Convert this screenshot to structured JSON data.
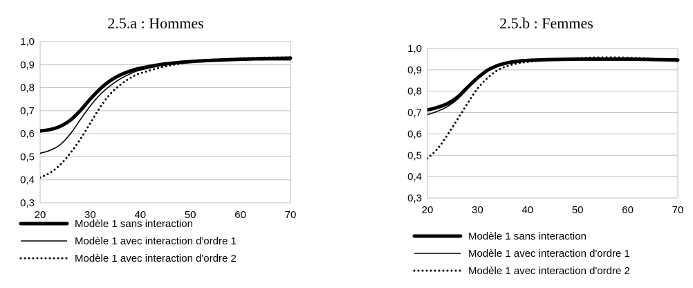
{
  "chart_data": [
    {
      "type": "line",
      "title": "2.5.a : Hommes",
      "xlim": [
        20,
        70
      ],
      "ylim": [
        0.3,
        1.0
      ],
      "x_ticks": [
        "20",
        "30",
        "40",
        "50",
        "60",
        "70"
      ],
      "y_ticks": [
        "0,3",
        "0,4",
        "0,5",
        "0,6",
        "0,7",
        "0,8",
        "0,9",
        "1,0"
      ],
      "grid": "horizontal",
      "legend_position": "bottom",
      "series": [
        {
          "name": "Modèle 1 sans interaction",
          "style": "thick",
          "x": [
            20,
            22,
            24,
            26,
            28,
            30,
            32,
            34,
            36,
            38,
            40,
            45,
            50,
            55,
            60,
            65,
            70
          ],
          "y": [
            0.612,
            0.618,
            0.632,
            0.658,
            0.7,
            0.75,
            0.795,
            0.83,
            0.855,
            0.872,
            0.884,
            0.903,
            0.913,
            0.919,
            0.923,
            0.926,
            0.928
          ]
        },
        {
          "name": "Modèle 1 avec interaction d'ordre 1",
          "style": "thin",
          "x": [
            20,
            22,
            24,
            26,
            28,
            30,
            32,
            34,
            36,
            38,
            40,
            45,
            50,
            55,
            60,
            65,
            70
          ],
          "y": [
            0.515,
            0.528,
            0.552,
            0.598,
            0.66,
            0.72,
            0.77,
            0.808,
            0.838,
            0.86,
            0.876,
            0.898,
            0.91,
            0.916,
            0.919,
            0.92,
            0.92
          ]
        },
        {
          "name": "Modèle 1 avec interaction d'ordre 2",
          "style": "dotted",
          "x": [
            20,
            22,
            24,
            26,
            28,
            30,
            32,
            34,
            36,
            38,
            40,
            45,
            50,
            55,
            60,
            65,
            70
          ],
          "y": [
            0.41,
            0.43,
            0.465,
            0.515,
            0.575,
            0.645,
            0.715,
            0.772,
            0.812,
            0.842,
            0.862,
            0.892,
            0.91,
            0.921,
            0.927,
            0.93,
            0.932
          ]
        }
      ]
    },
    {
      "type": "line",
      "title": "2.5.b : Femmes",
      "xlim": [
        20,
        70
      ],
      "ylim": [
        0.3,
        1.0
      ],
      "x_ticks": [
        "20",
        "30",
        "40",
        "50",
        "60",
        "70"
      ],
      "y_ticks": [
        "0,3",
        "0,4",
        "0,5",
        "0,6",
        "0,7",
        "0,8",
        "0,9",
        "1,0"
      ],
      "grid": "horizontal",
      "legend_position": "bottom",
      "series": [
        {
          "name": "Modèle 1 sans interaction",
          "style": "thick",
          "x": [
            20,
            22,
            24,
            26,
            28,
            30,
            32,
            34,
            36,
            38,
            40,
            45,
            50,
            55,
            60,
            65,
            70
          ],
          "y": [
            0.712,
            0.724,
            0.742,
            0.772,
            0.818,
            0.862,
            0.898,
            0.92,
            0.933,
            0.94,
            0.944,
            0.948,
            0.95,
            0.95,
            0.95,
            0.948,
            0.946
          ]
        },
        {
          "name": "Modèle 1 avec interaction d'ordre 1",
          "style": "thin",
          "x": [
            20,
            22,
            24,
            26,
            28,
            30,
            32,
            34,
            36,
            38,
            40,
            45,
            50,
            55,
            60,
            65,
            70
          ],
          "y": [
            0.69,
            0.706,
            0.728,
            0.762,
            0.81,
            0.858,
            0.895,
            0.918,
            0.932,
            0.94,
            0.944,
            0.948,
            0.95,
            0.95,
            0.95,
            0.948,
            0.946
          ]
        },
        {
          "name": "Modèle 1 avec interaction d'ordre 2",
          "style": "dotted",
          "x": [
            20,
            22,
            24,
            26,
            28,
            30,
            32,
            34,
            36,
            38,
            40,
            45,
            50,
            55,
            60,
            65,
            70
          ],
          "y": [
            0.485,
            0.53,
            0.595,
            0.668,
            0.742,
            0.812,
            0.862,
            0.898,
            0.918,
            0.93,
            0.937,
            0.948,
            0.955,
            0.958,
            0.957,
            0.952,
            0.94
          ]
        }
      ]
    }
  ]
}
